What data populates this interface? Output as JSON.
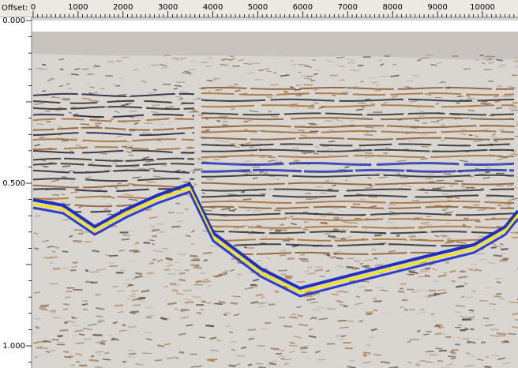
{
  "ruler": {
    "label": "Offset:",
    "ticks": [
      "0",
      "1000",
      "2000",
      "3000",
      "4000",
      "5000",
      "6000",
      "7000",
      "8000",
      "9000",
      "10000"
    ]
  },
  "time_axis": {
    "ticks": [
      "0.000",
      "0.500",
      "1.000"
    ]
  }
}
